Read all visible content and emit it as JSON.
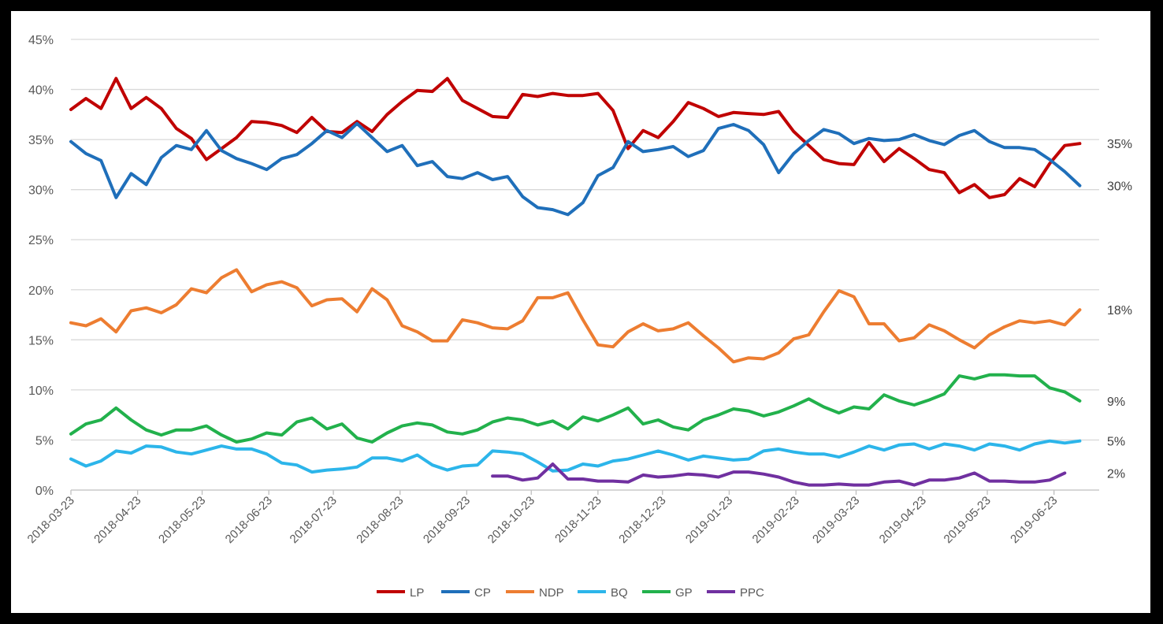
{
  "chart_data": {
    "type": "line",
    "title": "",
    "xlabel": "",
    "ylabel": "",
    "ylim": [
      0,
      45
    ],
    "yticks": [
      "0%",
      "5%",
      "10%",
      "15%",
      "20%",
      "25%",
      "30%",
      "35%",
      "40%",
      "45%"
    ],
    "xticks": [
      "2018-03-23",
      "2018-04-23",
      "2018-05-23",
      "2018-06-23",
      "2018-07-23",
      "2018-08-23",
      "2018-09-23",
      "2018-10-23",
      "2018-11-23",
      "2018-12-23",
      "2019-01-23",
      "2019-02-23",
      "2019-03-23",
      "2019-04-23",
      "2019-05-23",
      "2019-06-23"
    ],
    "x_range": [
      "2018-03-23",
      "2019-07-14"
    ],
    "grid": "horizontal",
    "legend_position": "bottom",
    "series": [
      {
        "name": "LP",
        "color": "#c00000",
        "end_label": "35%",
        "x_start": "2018-03-23",
        "interval_days": 7,
        "values": [
          38.0,
          39.1,
          38.1,
          41.1,
          38.1,
          39.2,
          38.1,
          36.1,
          35.1,
          33.0,
          34.1,
          35.2,
          36.8,
          36.7,
          36.4,
          35.7,
          37.2,
          35.8,
          35.7,
          36.8,
          35.8,
          37.5,
          38.8,
          39.9,
          39.8,
          41.1,
          38.9,
          38.1,
          37.3,
          37.2,
          39.5,
          39.3,
          39.6,
          39.4,
          39.4,
          39.6,
          37.9,
          34.1,
          35.9,
          35.2,
          36.8,
          38.7,
          38.1,
          37.3,
          37.7,
          37.6,
          37.5,
          37.8,
          35.8,
          34.4,
          33.0,
          32.6,
          32.5,
          34.7,
          32.8,
          34.1,
          33.1,
          32.0,
          31.7,
          29.7,
          30.5,
          29.2,
          29.5,
          31.1,
          30.3,
          32.6,
          34.4,
          34.6
        ]
      },
      {
        "name": "CP",
        "color": "#1f6fba",
        "end_label": "30%",
        "x_start": "2018-03-23",
        "interval_days": 7,
        "values": [
          34.8,
          33.6,
          32.9,
          29.2,
          31.6,
          30.5,
          33.2,
          34.4,
          34.0,
          35.9,
          33.9,
          33.1,
          32.6,
          32.0,
          33.1,
          33.5,
          34.6,
          35.9,
          35.2,
          36.6,
          35.2,
          33.8,
          34.4,
          32.4,
          32.8,
          31.3,
          31.1,
          31.7,
          31.0,
          31.3,
          29.3,
          28.2,
          28.0,
          27.5,
          28.7,
          31.4,
          32.2,
          34.8,
          33.8,
          34.0,
          34.3,
          33.3,
          33.9,
          36.1,
          36.5,
          35.9,
          34.5,
          31.7,
          33.6,
          34.9,
          36.0,
          35.6,
          34.6,
          35.1,
          34.9,
          35.0,
          35.5,
          34.9,
          34.5,
          35.4,
          35.9,
          34.8,
          34.2,
          34.2,
          34.0,
          33.0,
          31.8,
          30.4
        ]
      },
      {
        "name": "NDP",
        "color": "#ed7d31",
        "end_label": "18%",
        "x_start": "2018-03-23",
        "interval_days": 7,
        "values": [
          16.7,
          16.4,
          17.1,
          15.8,
          17.9,
          18.2,
          17.7,
          18.5,
          20.1,
          19.7,
          21.2,
          22.0,
          19.8,
          20.5,
          20.8,
          20.2,
          18.4,
          19.0,
          19.1,
          17.8,
          20.1,
          19.0,
          16.4,
          15.8,
          14.9,
          14.9,
          17.0,
          16.7,
          16.2,
          16.1,
          16.9,
          19.2,
          19.2,
          19.7,
          17.0,
          14.5,
          14.3,
          15.8,
          16.6,
          15.9,
          16.1,
          16.7,
          15.4,
          14.2,
          12.8,
          13.2,
          13.1,
          13.7,
          15.1,
          15.5,
          17.8,
          19.9,
          19.3,
          16.6,
          16.6,
          14.9,
          15.2,
          16.5,
          15.9,
          15.0,
          14.2,
          15.5,
          16.3,
          16.9,
          16.7,
          16.9,
          16.5,
          18.0
        ]
      },
      {
        "name": "BQ",
        "color": "#2cb5ea",
        "end_label": "5%",
        "x_start": "2018-03-23",
        "interval_days": 7,
        "values": [
          3.1,
          2.4,
          2.9,
          3.9,
          3.7,
          4.4,
          4.3,
          3.8,
          3.6,
          4.0,
          4.4,
          4.1,
          4.1,
          3.6,
          2.7,
          2.5,
          1.8,
          2.0,
          2.1,
          2.3,
          3.2,
          3.2,
          2.9,
          3.5,
          2.5,
          2.0,
          2.4,
          2.5,
          3.9,
          3.8,
          3.6,
          2.8,
          1.9,
          2.0,
          2.6,
          2.4,
          2.9,
          3.1,
          3.5,
          3.9,
          3.5,
          3.0,
          3.4,
          3.2,
          3.0,
          3.1,
          3.9,
          4.1,
          3.8,
          3.6,
          3.6,
          3.3,
          3.8,
          4.4,
          4.0,
          4.5,
          4.6,
          4.1,
          4.6,
          4.4,
          4.0,
          4.6,
          4.4,
          4.0,
          4.6,
          4.9,
          4.7,
          4.9
        ]
      },
      {
        "name": "GP",
        "color": "#22b14c",
        "end_label": "9%",
        "x_start": "2018-03-23",
        "interval_days": 7,
        "values": [
          5.6,
          6.6,
          7.0,
          8.2,
          7.0,
          6.0,
          5.5,
          6.0,
          6.0,
          6.4,
          5.5,
          4.8,
          5.1,
          5.7,
          5.5,
          6.8,
          7.2,
          6.1,
          6.6,
          5.2,
          4.8,
          5.7,
          6.4,
          6.7,
          6.5,
          5.8,
          5.6,
          6.0,
          6.8,
          7.2,
          7.0,
          6.5,
          6.9,
          6.1,
          7.3,
          6.9,
          7.5,
          8.2,
          6.6,
          7.0,
          6.3,
          6.0,
          7.0,
          7.5,
          8.1,
          7.9,
          7.4,
          7.8,
          8.4,
          9.1,
          8.3,
          7.7,
          8.3,
          8.1,
          9.5,
          8.9,
          8.5,
          9.0,
          9.6,
          11.4,
          11.1,
          11.5,
          11.5,
          11.4,
          11.4,
          10.2,
          9.8,
          8.9
        ]
      },
      {
        "name": "PPC",
        "color": "#7030a0",
        "end_label": "2%",
        "x_start": "2018-10-05",
        "interval_days": 7,
        "values": [
          1.4,
          1.4,
          1.0,
          1.2,
          2.6,
          1.1,
          1.1,
          0.9,
          0.9,
          0.8,
          1.5,
          1.3,
          1.4,
          1.6,
          1.5,
          1.3,
          1.8,
          1.8,
          1.6,
          1.3,
          0.8,
          0.5,
          0.5,
          0.6,
          0.5,
          0.5,
          0.8,
          0.9,
          0.5,
          1.0,
          1.0,
          1.2,
          1.7,
          0.9,
          0.9,
          0.8,
          0.8,
          1.0,
          1.7
        ]
      }
    ]
  }
}
